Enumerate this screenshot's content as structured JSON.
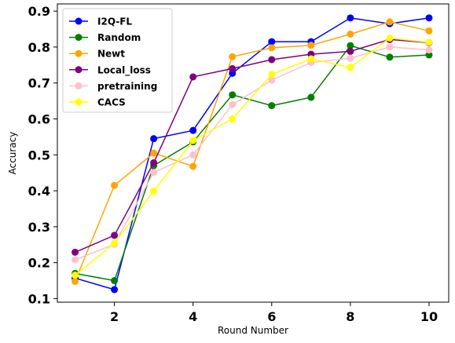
{
  "chart_data": {
    "type": "line",
    "title": "",
    "xlabel": "Round Number",
    "ylabel": "Accuracy",
    "xlim": [
      0.55,
      10.5
    ],
    "ylim": [
      0.09,
      0.92
    ],
    "xticks": [
      2,
      4,
      6,
      8,
      10
    ],
    "xtick_labels": [
      "2",
      "4",
      "6",
      "8",
      "10"
    ],
    "yticks": [
      0.1,
      0.2,
      0.3,
      0.4,
      0.5,
      0.6,
      0.7,
      0.8,
      0.9
    ],
    "ytick_labels": [
      "0.1",
      "0.2",
      "0.3",
      "0.4",
      "0.5",
      "0.6",
      "0.7",
      "0.8",
      "0.9"
    ],
    "grid": false,
    "legend_position": "top-left",
    "x": [
      1,
      2,
      3,
      4,
      5,
      6,
      7,
      8,
      9,
      10
    ],
    "series": [
      {
        "name": "I2Q-FL",
        "color": "#0000ff",
        "values": [
          0.157,
          0.125,
          0.545,
          0.568,
          0.727,
          0.815,
          0.815,
          0.881,
          0.865,
          0.881
        ]
      },
      {
        "name": "Random",
        "color": "#008000",
        "values": [
          0.17,
          0.15,
          0.47,
          0.536,
          0.667,
          0.637,
          0.66,
          0.804,
          0.772,
          0.778
        ]
      },
      {
        "name": "Newt",
        "color": "#ffa500",
        "values": [
          0.148,
          0.415,
          0.505,
          0.468,
          0.773,
          0.798,
          0.805,
          0.836,
          0.87,
          0.845
        ]
      },
      {
        "name": "Local_loss",
        "color": "#800080",
        "values": [
          0.229,
          0.276,
          0.478,
          0.717,
          0.74,
          0.765,
          0.78,
          0.788,
          0.821,
          0.812
        ]
      },
      {
        "name": "pretraining",
        "color": "#ffc0cb",
        "values": [
          0.208,
          0.251,
          0.451,
          0.5,
          0.64,
          0.708,
          0.757,
          0.769,
          0.8,
          0.792
        ]
      },
      {
        "name": "CACS",
        "color": "#ffff00",
        "values": [
          0.165,
          0.254,
          0.399,
          0.54,
          0.6,
          0.724,
          0.767,
          0.743,
          0.825,
          0.813
        ]
      }
    ]
  }
}
